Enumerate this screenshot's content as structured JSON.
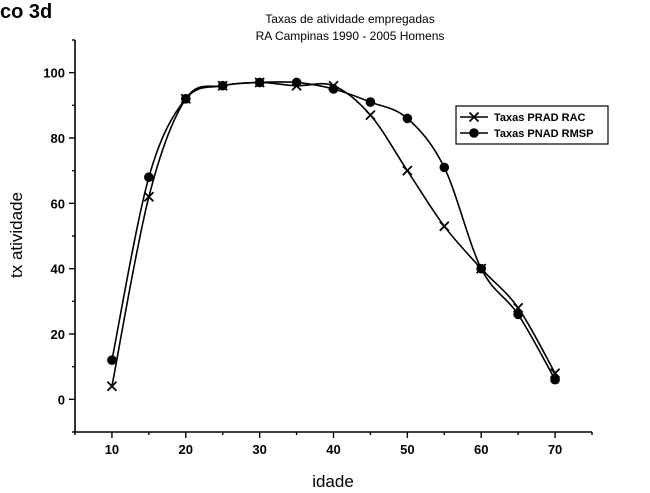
{
  "figure_label": "co 3d",
  "chart_data": {
    "type": "line",
    "title": [
      "Taxas de atividade empregadas",
      "RA Campinas 1990 - 2005  Homens"
    ],
    "xlabel": "idade",
    "ylabel": "tx atividade",
    "xlim": [
      5,
      75
    ],
    "ylim": [
      -10,
      110
    ],
    "x_ticks": [
      10,
      20,
      30,
      40,
      50,
      60,
      70
    ],
    "y_ticks": [
      0,
      20,
      40,
      60,
      80,
      100
    ],
    "x": [
      10,
      15,
      20,
      25,
      30,
      35,
      40,
      45,
      50,
      55,
      60,
      65,
      70
    ],
    "legend_position": "right",
    "series": [
      {
        "name": "Taxas PRAD RAC",
        "marker": "x",
        "values": [
          4,
          62,
          92,
          96,
          97,
          96,
          96,
          87,
          70,
          53,
          40,
          28,
          8
        ]
      },
      {
        "name": "Taxas PNAD RMSP",
        "marker": "circle",
        "values": [
          12,
          68,
          92,
          96,
          97,
          97,
          95,
          91,
          86,
          71,
          40,
          26,
          6
        ]
      }
    ]
  }
}
